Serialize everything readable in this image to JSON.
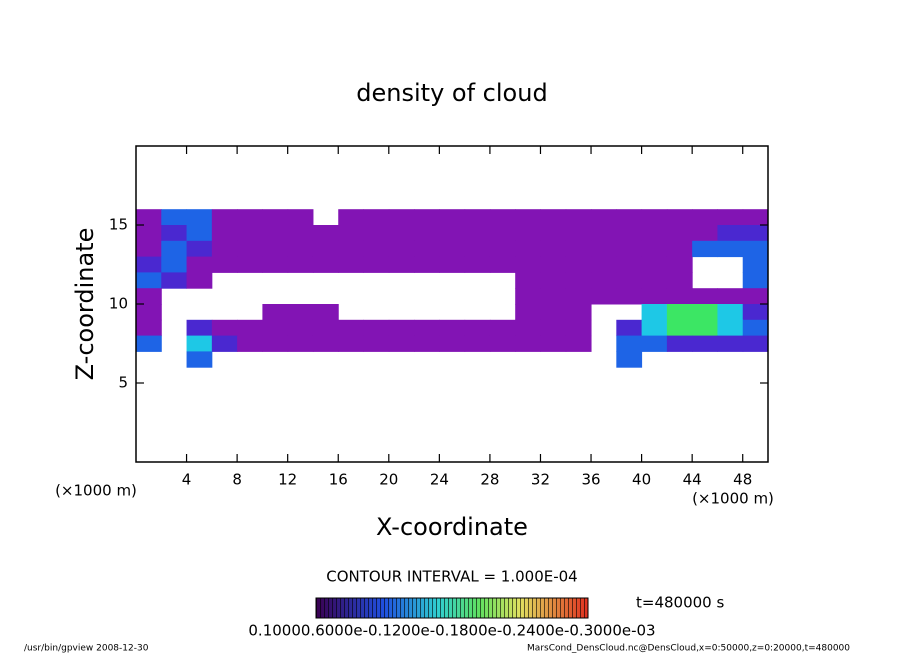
{
  "chart_data": {
    "type": "contour",
    "title": "density of cloud",
    "xlabel": "X-coordinate",
    "ylabel": "Z-coordinate",
    "x_unit": "(×1000 m)",
    "y_unit": "(×1000 m)",
    "contour_interval": "CONTOUR INTERVAL = 1.000E-04",
    "time_label": "t=480000 s",
    "colorbar_label": "0.10000.6000e-0.1200e-0.1800e-0.2400e-0.3000e-03",
    "footer_left": "/usr/bin/gpview  2008-12-30",
    "footer_right": "MarsCond_DensCloud.nc@DensCloud,x=0:50000,z=0:20000,t=480000",
    "xlim": [
      0,
      50
    ],
    "ylim": [
      0,
      20
    ],
    "xticks": [
      4,
      8,
      12,
      16,
      20,
      24,
      28,
      32,
      36,
      40,
      44,
      48
    ],
    "yticks": [
      5,
      10,
      15
    ],
    "x": [
      1,
      3,
      5,
      7,
      9,
      11,
      13,
      15,
      17,
      19,
      21,
      23,
      25,
      27,
      29,
      31,
      33,
      35,
      37,
      39,
      41,
      43,
      45,
      47,
      49
    ],
    "z": [
      15.5,
      14.5,
      13.5,
      12.5,
      11.5,
      10.5,
      9.5,
      8.5,
      7.5,
      6.5
    ],
    "levels": [
      0.05,
      0.09,
      0.13,
      0.19
    ],
    "colors": [
      "#8214b4",
      "#4a28d0",
      "#1e64e6",
      "#1ec8e6",
      "#3ce664"
    ],
    "values": [
      [
        0.03,
        0.11,
        0.11,
        0.03,
        0.03,
        0.03,
        0.03,
        null,
        0.03,
        0.03,
        0.03,
        0.03,
        0.03,
        0.03,
        0.03,
        0.03,
        0.03,
        0.03,
        0.03,
        0.03,
        0.03,
        0.03,
        0.03,
        0.03,
        0.03
      ],
      [
        0.03,
        0.07,
        0.11,
        0.03,
        0.03,
        0.03,
        0.03,
        0.03,
        0.03,
        0.03,
        0.03,
        0.03,
        0.03,
        0.03,
        0.03,
        0.03,
        0.03,
        0.03,
        0.03,
        0.03,
        0.03,
        0.03,
        0.03,
        0.07,
        0.07
      ],
      [
        0.03,
        0.11,
        0.07,
        0.03,
        0.03,
        0.03,
        0.03,
        0.03,
        0.03,
        0.03,
        0.03,
        0.03,
        0.03,
        0.03,
        0.03,
        0.03,
        0.03,
        0.03,
        0.03,
        0.03,
        0.03,
        0.03,
        0.11,
        0.11,
        0.11
      ],
      [
        0.07,
        0.11,
        0.03,
        0.03,
        0.03,
        0.03,
        0.03,
        0.03,
        0.03,
        0.03,
        0.03,
        0.03,
        0.03,
        0.03,
        0.03,
        0.03,
        0.03,
        0.03,
        0.03,
        0.03,
        0.03,
        0.03,
        null,
        null,
        0.11
      ],
      [
        0.11,
        0.07,
        0.03,
        null,
        null,
        null,
        null,
        null,
        null,
        null,
        null,
        null,
        null,
        null,
        null,
        0.03,
        0.03,
        0.03,
        0.03,
        0.03,
        0.03,
        0.03,
        null,
        null,
        0.11
      ],
      [
        0.03,
        null,
        null,
        null,
        null,
        null,
        null,
        null,
        null,
        null,
        null,
        null,
        null,
        null,
        null,
        0.03,
        0.03,
        0.03,
        0.03,
        0.03,
        0.03,
        0.03,
        0.03,
        0.03,
        0.03
      ],
      [
        0.03,
        null,
        null,
        null,
        null,
        0.03,
        0.03,
        0.03,
        null,
        null,
        null,
        null,
        null,
        null,
        null,
        0.03,
        0.03,
        0.03,
        null,
        null,
        0.16,
        0.22,
        0.22,
        0.16,
        0.07
      ],
      [
        0.03,
        null,
        0.07,
        0.03,
        0.03,
        0.03,
        0.03,
        0.03,
        0.03,
        0.03,
        0.03,
        0.03,
        0.03,
        0.03,
        0.03,
        0.03,
        0.03,
        0.03,
        null,
        0.07,
        0.16,
        0.22,
        0.22,
        0.16,
        0.11
      ],
      [
        0.11,
        null,
        0.16,
        0.07,
        0.03,
        0.03,
        0.03,
        0.03,
        0.03,
        0.03,
        0.03,
        0.03,
        0.03,
        0.03,
        0.03,
        0.03,
        0.03,
        0.03,
        null,
        0.11,
        0.11,
        0.07,
        0.07,
        0.07,
        0.07
      ],
      [
        null,
        null,
        0.11,
        null,
        null,
        null,
        null,
        null,
        null,
        null,
        null,
        null,
        null,
        null,
        null,
        null,
        null,
        null,
        null,
        0.11,
        null,
        null,
        null,
        null,
        null
      ]
    ]
  }
}
